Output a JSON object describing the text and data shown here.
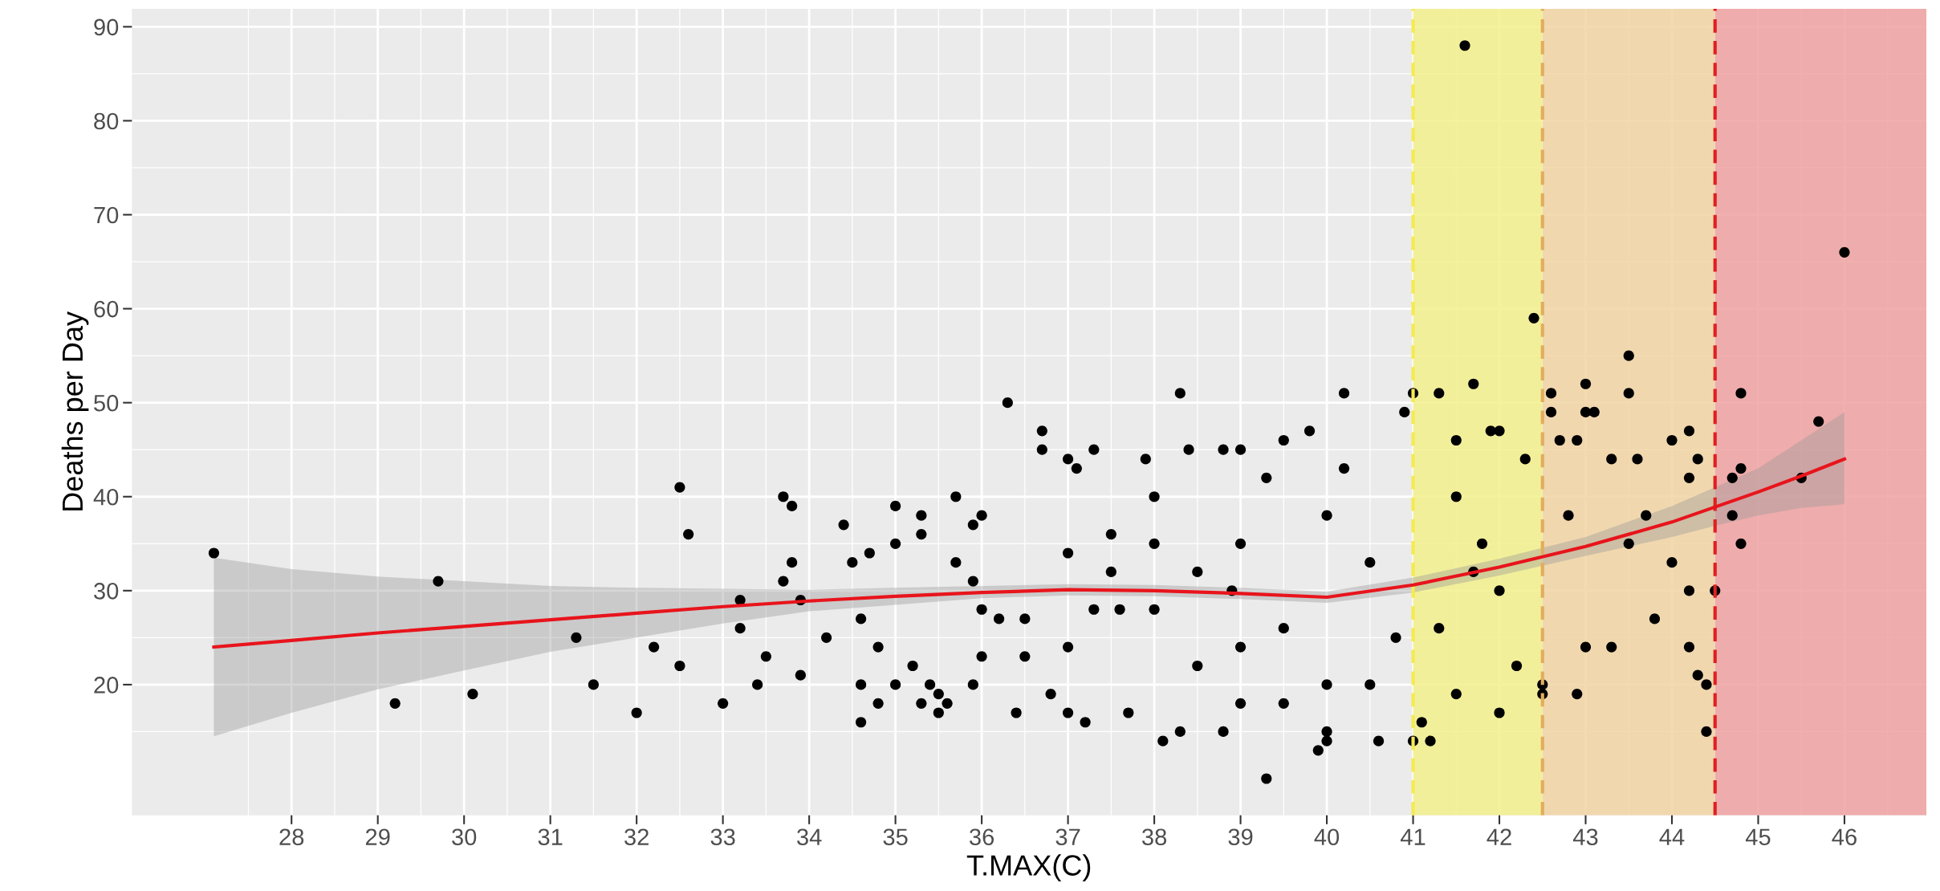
{
  "chart_data": {
    "type": "scatter",
    "xlabel": "T.MAX(C)",
    "ylabel": "Deaths per Day",
    "xlim": [
      26.15,
      46.95
    ],
    "xticks": [
      28,
      29,
      30,
      31,
      32,
      33,
      34,
      35,
      36,
      37,
      38,
      39,
      40,
      41,
      42,
      43,
      44,
      45,
      46
    ],
    "ylim": [
      6.1,
      91.9
    ],
    "yticks": [
      20,
      30,
      40,
      50,
      60,
      70,
      80,
      90
    ],
    "grid": true,
    "marker": "circle",
    "bands": [
      {
        "axis": "x",
        "from": 41,
        "to": 42.5,
        "color": "#f3f08c"
      },
      {
        "axis": "x",
        "from": 42.5,
        "to": 44.5,
        "color": "#f1d3a3"
      },
      {
        "axis": "x",
        "from": 44.5,
        "to": 46.95,
        "color": "#f0a1a1"
      }
    ],
    "ref_lines": [
      {
        "axis": "x",
        "value": 41,
        "color": "#f5ea50",
        "line_style": "dashed"
      },
      {
        "axis": "x",
        "value": 42.5,
        "color": "#e3ad5c",
        "line_style": "dashed"
      },
      {
        "axis": "x",
        "value": 44.5,
        "color": "#e02020",
        "line_style": "dashed"
      }
    ],
    "series": [
      {
        "color": "#000000",
        "x": [
          27.1,
          29.2,
          29.7,
          30.1,
          31.3,
          31.5,
          32,
          32.2,
          32.5,
          32.5,
          32.6,
          33,
          33.2,
          33.2,
          33.4,
          33.5,
          33.7,
          33.7,
          33.8,
          33.8,
          33.9,
          33.9,
          34.2,
          34.4,
          34.5,
          34.6,
          34.6,
          34.6,
          34.7,
          34.8,
          34.8,
          35,
          35,
          35,
          35.2,
          35.3,
          35.3,
          35.3,
          35.4,
          35.5,
          35.5,
          35.6,
          35.7,
          35.7,
          35.9,
          35.9,
          35.9,
          36,
          36,
          36,
          36.2,
          36.3,
          36.4,
          36.5,
          36.5,
          36.7,
          36.7,
          36.8,
          37,
          37,
          37,
          37,
          37.1,
          37.2,
          37.3,
          37.3,
          37.5,
          37.6,
          37.7,
          37.9,
          38,
          38,
          38.1,
          38.3,
          38.3,
          38.4,
          38.5,
          38.8,
          38.8,
          38.9,
          39,
          39,
          39,
          39.3,
          39.3,
          39.5,
          39.5,
          39.8,
          39.9,
          40,
          40,
          40.2,
          40.2,
          40.6,
          40.5,
          40.9,
          40,
          39.5,
          38.5,
          37.5,
          38,
          39,
          40,
          40.5,
          40.8,
          41,
          41,
          41.2,
          41.1,
          41.3,
          41.5,
          41.6,
          41.7,
          41.9,
          42,
          42,
          41.5,
          42.4,
          42.3,
          41.5,
          41.8,
          42,
          41.3,
          42.2,
          41.7,
          42.5,
          42.5,
          42.6,
          42.6,
          43,
          43,
          43.1,
          43.5,
          43.5,
          42.7,
          42.9,
          43.3,
          43.6,
          44,
          44.2,
          44.3,
          44.2,
          43.5,
          43,
          42.9,
          43.3,
          43.8,
          44.2,
          44.3,
          44.4,
          44.4,
          44.5,
          44.2,
          44,
          43.7,
          42.8,
          44.7,
          44.8,
          44.7,
          44.8,
          44.8,
          45.5,
          45.7,
          46
        ],
        "values": [
          34,
          18,
          31,
          19,
          25,
          20,
          17,
          24,
          41,
          22,
          36,
          18,
          29,
          26,
          20,
          23,
          40,
          31,
          39,
          33,
          21,
          29,
          25,
          37,
          33,
          16,
          20,
          27,
          34,
          18,
          24,
          39,
          35,
          20,
          22,
          38,
          18,
          36,
          20,
          17,
          19,
          18,
          33,
          40,
          37,
          31,
          20,
          38,
          28,
          23,
          27,
          50,
          17,
          23,
          27,
          47,
          45,
          19,
          44,
          34,
          24,
          17,
          43,
          16,
          45,
          28,
          36,
          28,
          17,
          44,
          40,
          35,
          14,
          51,
          15,
          45,
          32,
          15,
          45,
          30,
          45,
          24,
          18,
          10,
          42,
          46,
          18,
          47,
          13,
          15,
          14,
          51,
          43,
          14,
          20,
          49,
          20,
          26,
          22,
          32,
          28,
          35,
          38,
          33,
          25,
          51,
          14,
          14,
          16,
          51,
          46,
          88,
          52,
          47,
          47,
          17,
          19,
          59,
          44,
          40,
          35,
          30,
          26,
          22,
          32,
          19,
          20,
          51,
          49,
          52,
          49,
          49,
          55,
          51,
          46,
          46,
          44,
          44,
          46,
          47,
          44,
          42,
          35,
          24,
          19,
          24,
          27,
          24,
          21,
          20,
          15,
          30,
          30,
          33,
          38,
          38,
          42,
          51,
          38,
          43,
          35,
          42,
          48,
          66
        ]
      },
      {
        "type": "line",
        "marker": "none",
        "color": "#e8141c",
        "x": [
          27.1,
          28,
          29,
          30,
          31,
          32,
          33,
          34,
          35,
          36,
          37,
          38,
          39,
          40,
          41,
          42,
          43,
          44,
          44.5,
          45,
          45.5,
          46
        ],
        "values": [
          24,
          24.7,
          25.5,
          26.2,
          26.9,
          27.6,
          28.3,
          28.9,
          29.4,
          29.8,
          30.1,
          30.0,
          29.7,
          29.3,
          30.6,
          32.5,
          34.7,
          37.3,
          38.9,
          40.5,
          42.2,
          44
        ],
        "lower": [
          14.5,
          17,
          19.5,
          21.5,
          23.5,
          25,
          26.5,
          27.8,
          28.5,
          29.2,
          29.5,
          29.4,
          29.1,
          28.7,
          29.8,
          31.6,
          33.7,
          35.7,
          36.9,
          38,
          38.8,
          39.2
        ],
        "upper": [
          33.5,
          32.3,
          31.5,
          31,
          30.5,
          30.3,
          30.2,
          30.1,
          30.3,
          30.5,
          30.7,
          30.6,
          30.3,
          29.9,
          31.4,
          33.4,
          35.7,
          39,
          41,
          43,
          46,
          49
        ]
      }
    ]
  }
}
